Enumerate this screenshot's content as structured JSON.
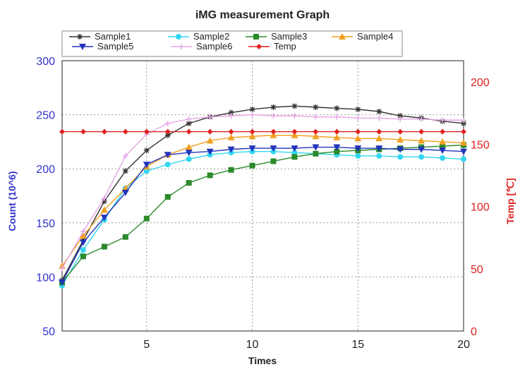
{
  "chart_data": {
    "type": "line",
    "title": "iMG measurement Graph",
    "xlabel": "Times",
    "ylabel": "Count (10^6)",
    "y2label": "Temp [℃]",
    "xlim": [
      1,
      20
    ],
    "ylim": [
      50,
      300
    ],
    "y2lim": [
      0,
      217
    ],
    "xticks": [
      5,
      10,
      15,
      20
    ],
    "yticks": [
      50,
      100,
      150,
      200,
      250,
      300
    ],
    "y2ticks": [
      0,
      50,
      100,
      150,
      200
    ],
    "grid": true,
    "legend_position": "top",
    "x": [
      1,
      2,
      3,
      4,
      5,
      6,
      7,
      8,
      9,
      10,
      11,
      12,
      13,
      14,
      15,
      16,
      17,
      18,
      19,
      20
    ],
    "series": [
      {
        "name": "Sample1",
        "color": "#333333",
        "marker": "asterisk",
        "axis": "left",
        "values": [
          97,
          134,
          170,
          198,
          217,
          231,
          242,
          248,
          252,
          255,
          257,
          258,
          257,
          256,
          255,
          253,
          249,
          247,
          244,
          242
        ]
      },
      {
        "name": "Sample2",
        "color": "#33d6f0",
        "marker": "circle",
        "axis": "left",
        "values": [
          92,
          125,
          153,
          182,
          198,
          204,
          209,
          213,
          215,
          216,
          216,
          215,
          214,
          213,
          212,
          212,
          211,
          211,
          210,
          209
        ]
      },
      {
        "name": "Sample3",
        "color": "#2a8a2a",
        "marker": "square",
        "axis": "left",
        "values": [
          95,
          119,
          128,
          137,
          154,
          174,
          187,
          194,
          199,
          203,
          207,
          211,
          214,
          216,
          217,
          218,
          219,
          220,
          221,
          222
        ]
      },
      {
        "name": "Sample4",
        "color": "#f0a020",
        "marker": "triangle-up",
        "axis": "left",
        "values": [
          110,
          138,
          162,
          182,
          202,
          213,
          220,
          226,
          229,
          230,
          231,
          231,
          230,
          229,
          228,
          228,
          227,
          226,
          225,
          224
        ]
      },
      {
        "name": "Sample5",
        "color": "#2233bb",
        "marker": "triangle-down",
        "axis": "left",
        "values": [
          95,
          132,
          155,
          178,
          204,
          213,
          215,
          216,
          218,
          219,
          219,
          219,
          220,
          220,
          219,
          219,
          218,
          218,
          217,
          216
        ]
      },
      {
        "name": "Sample6",
        "color": "#e6a6e6",
        "marker": "plus",
        "axis": "left",
        "values": [
          108,
          142,
          173,
          212,
          232,
          242,
          246,
          248,
          249,
          250,
          249,
          249,
          248,
          248,
          247,
          247,
          246,
          246,
          245,
          245
        ]
      },
      {
        "name": "Temp",
        "color": "#e02020",
        "marker": "diamond",
        "axis": "right",
        "values": [
          160,
          160,
          160,
          160,
          160,
          160,
          160,
          160,
          160,
          160,
          160,
          160,
          160,
          160,
          160,
          160,
          160,
          160,
          160,
          160
        ]
      }
    ]
  }
}
